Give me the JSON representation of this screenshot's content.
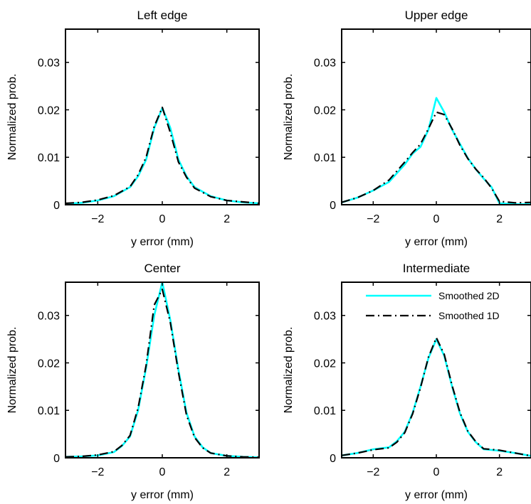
{
  "figure": {
    "legend": {
      "entries": [
        {
          "label": "Smoothed 2D",
          "color": "#00ffff",
          "style": "solid"
        },
        {
          "label": "Smoothed 1D",
          "color": "#000000",
          "style": "dash-dot"
        }
      ]
    }
  },
  "chart_data": [
    {
      "type": "line",
      "title": "Left edge",
      "xlabel": "y error (mm)",
      "ylabel": "Normalized prob.",
      "xlim": [
        -3,
        3
      ],
      "ylim": [
        0,
        0.037
      ],
      "xticks": [
        -2,
        0,
        2
      ],
      "xtick_labels": [
        "−2",
        "0",
        "2"
      ],
      "yticks": [
        0,
        0.01,
        0.02,
        0.03
      ],
      "ytick_labels": [
        "0",
        "0.01",
        "0.02",
        "0.03"
      ],
      "grid": false,
      "series": [
        {
          "name": "Smoothed 2D",
          "color": "#00ffff",
          "style": "solid",
          "x": [
            -3,
            -2.5,
            -2,
            -1.5,
            -1,
            -0.75,
            -0.5,
            -0.25,
            0,
            0.25,
            0.5,
            0.75,
            1,
            1.5,
            2,
            2.5,
            3
          ],
          "y": [
            0.0002,
            0.0004,
            0.0009,
            0.0018,
            0.0037,
            0.006,
            0.0095,
            0.0162,
            0.0204,
            0.0162,
            0.0095,
            0.006,
            0.0037,
            0.0018,
            0.0009,
            0.0005,
            0.0003
          ]
        },
        {
          "name": "Smoothed 1D",
          "color": "#000000",
          "style": "dash-dot",
          "x": [
            -3,
            -2.5,
            -2,
            -1.5,
            -1,
            -0.75,
            -0.5,
            -0.25,
            0,
            0.25,
            0.5,
            0.75,
            1,
            1.5,
            2,
            2.5,
            3
          ],
          "y": [
            0.0003,
            0.0005,
            0.001,
            0.0019,
            0.0038,
            0.0063,
            0.01,
            0.0165,
            0.0205,
            0.0152,
            0.009,
            0.0058,
            0.0035,
            0.0017,
            0.0009,
            0.0006,
            0.0003
          ]
        }
      ]
    },
    {
      "type": "line",
      "title": "Upper edge",
      "xlabel": "y error (mm)",
      "ylabel": "Normalized prob.",
      "xlim": [
        -3,
        3
      ],
      "ylim": [
        0,
        0.037
      ],
      "xticks": [
        -2,
        0,
        2
      ],
      "xtick_labels": [
        "−2",
        "0",
        "2"
      ],
      "yticks": [
        0,
        0.01,
        0.02,
        0.03
      ],
      "ytick_labels": [
        "0",
        "0.01",
        "0.02",
        "0.03"
      ],
      "grid": false,
      "series": [
        {
          "name": "Smoothed 2D",
          "color": "#00ffff",
          "style": "solid",
          "x": [
            -3,
            -2.5,
            -2,
            -1.5,
            -1,
            -0.75,
            -0.5,
            -0.25,
            0,
            0.25,
            0.5,
            0.75,
            1,
            1.25,
            1.5,
            1.75,
            2,
            2.5,
            3
          ],
          "y": [
            0.0005,
            0.0015,
            0.003,
            0.0048,
            0.0085,
            0.0108,
            0.0122,
            0.0158,
            0.0225,
            0.0195,
            0.0158,
            0.0128,
            0.0098,
            0.0075,
            0.0055,
            0.0037,
            0.0003,
            0.0001,
            0.0001
          ]
        },
        {
          "name": "Smoothed 1D",
          "color": "#000000",
          "style": "dash-dot",
          "x": [
            -3,
            -2.5,
            -2,
            -1.5,
            -1,
            -0.75,
            -0.5,
            -0.25,
            0,
            0.25,
            0.5,
            0.75,
            1,
            1.25,
            1.5,
            1.75,
            2,
            2.5,
            3
          ],
          "y": [
            0.0005,
            0.0015,
            0.003,
            0.0052,
            0.009,
            0.011,
            0.0128,
            0.016,
            0.0195,
            0.019,
            0.016,
            0.0125,
            0.0097,
            0.0075,
            0.0057,
            0.0035,
            0.0007,
            0.0004,
            0.0005
          ]
        }
      ]
    },
    {
      "type": "line",
      "title": "Center",
      "xlabel": "y error (mm)",
      "ylabel": "Normalized prob.",
      "xlim": [
        -3,
        3
      ],
      "ylim": [
        0,
        0.037
      ],
      "xticks": [
        -2,
        0,
        2
      ],
      "xtick_labels": [
        "−2",
        "0",
        "2"
      ],
      "yticks": [
        0,
        0.01,
        0.02,
        0.03
      ],
      "ytick_labels": [
        "0",
        "0.01",
        "0.02",
        "0.03"
      ],
      "grid": false,
      "series": [
        {
          "name": "Smoothed 2D",
          "color": "#00ffff",
          "style": "solid",
          "x": [
            -3,
            -2.5,
            -2,
            -1.5,
            -1.25,
            -1,
            -0.75,
            -0.5,
            -0.25,
            0,
            0.25,
            0.5,
            0.75,
            1,
            1.25,
            1.5,
            2,
            2.5,
            3
          ],
          "y": [
            0.0002,
            0.0003,
            0.0005,
            0.0012,
            0.0025,
            0.0045,
            0.01,
            0.019,
            0.03,
            0.037,
            0.029,
            0.0185,
            0.0095,
            0.0045,
            0.0022,
            0.001,
            0.0004,
            0.0002,
            0.0001
          ]
        },
        {
          "name": "Smoothed 1D",
          "color": "#000000",
          "style": "dash-dot",
          "x": [
            -3,
            -2.5,
            -2,
            -1.5,
            -1.25,
            -1,
            -0.75,
            -0.5,
            -0.25,
            0,
            0.25,
            0.5,
            0.75,
            1,
            1.25,
            1.5,
            2,
            2.5,
            3
          ],
          "y": [
            0.0002,
            0.0003,
            0.0006,
            0.0013,
            0.0026,
            0.0047,
            0.0105,
            0.0195,
            0.0322,
            0.0355,
            0.0285,
            0.018,
            0.009,
            0.0043,
            0.0021,
            0.001,
            0.0004,
            0.0002,
            0.0001
          ]
        }
      ]
    },
    {
      "type": "line",
      "title": "Intermediate",
      "xlabel": "y error (mm)",
      "ylabel": "Normalized prob.",
      "xlim": [
        -3,
        3
      ],
      "ylim": [
        0,
        0.037
      ],
      "xticks": [
        -2,
        0,
        2
      ],
      "xtick_labels": [
        "−2",
        "0",
        "2"
      ],
      "yticks": [
        0,
        0.01,
        0.02,
        0.03
      ],
      "ytick_labels": [
        "0",
        "0.01",
        "0.02",
        "0.03"
      ],
      "grid": false,
      "legend": "top-right",
      "series": [
        {
          "name": "Smoothed 2D",
          "color": "#00ffff",
          "style": "solid",
          "x": [
            -3,
            -2.5,
            -2,
            -1.5,
            -1.25,
            -1,
            -0.75,
            -0.5,
            -0.25,
            0,
            0.25,
            0.5,
            0.75,
            1,
            1.25,
            1.5,
            2,
            2.5,
            3
          ],
          "y": [
            0.0005,
            0.001,
            0.0018,
            0.0022,
            0.0035,
            0.0055,
            0.0095,
            0.015,
            0.021,
            0.025,
            0.0215,
            0.015,
            0.0093,
            0.0055,
            0.0033,
            0.0018,
            0.0015,
            0.001,
            0.0004
          ]
        },
        {
          "name": "Smoothed 1D",
          "color": "#000000",
          "style": "dash-dot",
          "x": [
            -3,
            -2.5,
            -2,
            -1.5,
            -1.25,
            -1,
            -0.75,
            -0.5,
            -0.25,
            0,
            0.25,
            0.5,
            0.75,
            1,
            1.25,
            1.5,
            2,
            2.5,
            3
          ],
          "y": [
            0.0005,
            0.001,
            0.0017,
            0.0021,
            0.0033,
            0.0053,
            0.0093,
            0.0148,
            0.0212,
            0.0253,
            0.0218,
            0.0152,
            0.0095,
            0.0056,
            0.0034,
            0.0019,
            0.0016,
            0.001,
            0.0004
          ]
        }
      ]
    }
  ]
}
